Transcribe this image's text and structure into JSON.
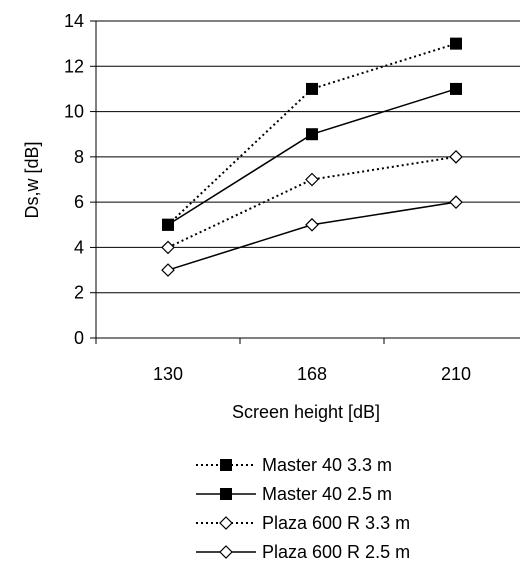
{
  "chart_data": {
    "type": "line",
    "categories": [
      "130",
      "168",
      "210"
    ],
    "xlabel": "Screen height [dB]",
    "ylabel": "Ds,w [dB]",
    "ylim": [
      0,
      14
    ],
    "yticks": [
      0,
      2,
      4,
      6,
      8,
      10,
      12,
      14
    ],
    "grid": "horizontal",
    "legend_position": "bottom",
    "series": [
      {
        "name": "Master 40 3.3 m",
        "values": [
          5,
          11,
          13
        ],
        "marker": "filled-square",
        "line": "dotted",
        "color": "#000000"
      },
      {
        "name": "Master 40 2.5 m",
        "values": [
          5,
          9,
          11
        ],
        "marker": "filled-square",
        "line": "solid",
        "color": "#000000"
      },
      {
        "name": "Plaza 600 R 3.3 m",
        "values": [
          4,
          7,
          8
        ],
        "marker": "open-diamond",
        "line": "dotted",
        "color": "#000000"
      },
      {
        "name": "Plaza 600 R 2.5 m",
        "values": [
          3,
          5,
          6
        ],
        "marker": "open-diamond",
        "line": "solid",
        "color": "#000000"
      }
    ]
  }
}
